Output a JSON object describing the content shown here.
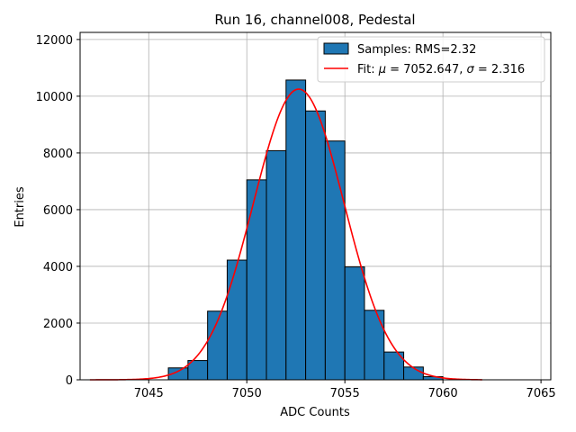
{
  "chart_data": {
    "type": "bar",
    "title": "Run 16, channel008, Pedestal",
    "xlabel": "ADC Counts",
    "ylabel": "Entries",
    "xlim": [
      7041.5,
      7065.5
    ],
    "ylim": [
      0,
      12250
    ],
    "xticks": [
      7045,
      7050,
      7055,
      7060,
      7065
    ],
    "yticks": [
      0,
      2000,
      4000,
      6000,
      8000,
      10000,
      12000
    ],
    "grid": true,
    "legend_position": "top-right",
    "bar_color": "#1f77b4",
    "fit_color": "#ff0000",
    "bins": [
      {
        "x0": 7046,
        "x1": 7047,
        "value": 420
      },
      {
        "x0": 7047,
        "x1": 7048,
        "value": 680
      },
      {
        "x0": 7048,
        "x1": 7049,
        "value": 2420
      },
      {
        "x0": 7049,
        "x1": 7050,
        "value": 4220
      },
      {
        "x0": 7050,
        "x1": 7051,
        "value": 7050
      },
      {
        "x0": 7051,
        "x1": 7052,
        "value": 8080
      },
      {
        "x0": 7052,
        "x1": 7053,
        "value": 10570
      },
      {
        "x0": 7053,
        "x1": 7054,
        "value": 9480
      },
      {
        "x0": 7054,
        "x1": 7055,
        "value": 8420
      },
      {
        "x0": 7055,
        "x1": 7056,
        "value": 3980
      },
      {
        "x0": 7056,
        "x1": 7057,
        "value": 2450
      },
      {
        "x0": 7057,
        "x1": 7058,
        "value": 980
      },
      {
        "x0": 7058,
        "x1": 7059,
        "value": 450
      },
      {
        "x0": 7059,
        "x1": 7060,
        "value": 110
      }
    ],
    "fit": {
      "mu": 7052.647,
      "sigma": 2.316,
      "amplitude": 10250,
      "x_range": [
        7042,
        7062
      ]
    },
    "legend": {
      "samples_label": "Samples: RMS=2.32",
      "fit_label_prefix": "Fit: ",
      "fit_mu_symbol": "μ",
      "fit_mu_text": " = 7052.647, ",
      "fit_sigma_symbol": "σ",
      "fit_sigma_text": " = 2.316"
    }
  }
}
